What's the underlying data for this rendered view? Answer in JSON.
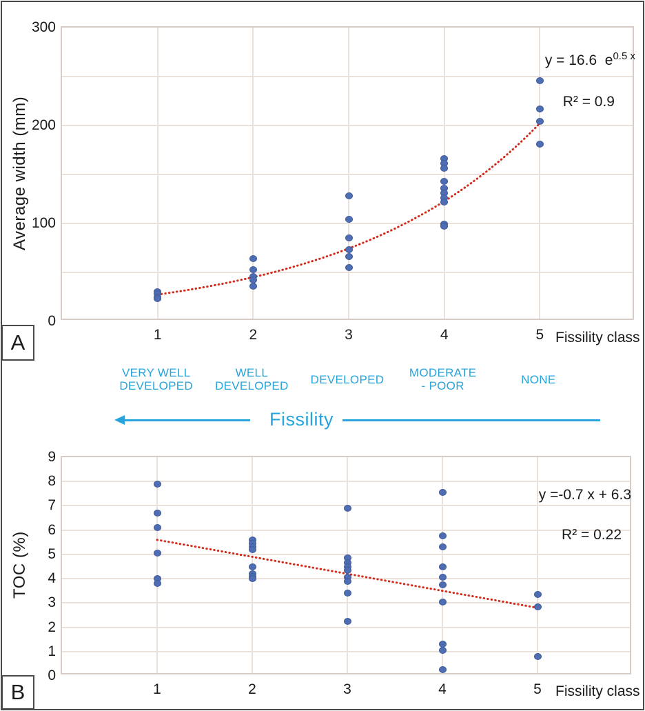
{
  "labels": {
    "panel_a": "A",
    "panel_b": "B"
  },
  "middle": {
    "accent_color": "#27a4dc",
    "axis_word": "Fissility",
    "categories": [
      {
        "class": 1,
        "lines": [
          "VERY WELL",
          "DEVELOPED"
        ]
      },
      {
        "class": 2,
        "lines": [
          "WELL",
          "DEVELOPED"
        ]
      },
      {
        "class": 3,
        "lines": [
          "DEVELOPED"
        ]
      },
      {
        "class": 4,
        "lines": [
          "MODERATE",
          "- POOR"
        ]
      },
      {
        "class": 5,
        "lines": [
          "NONE"
        ]
      }
    ]
  },
  "chart_data": [
    {
      "panel": "A",
      "type": "scatter",
      "ylabel": "Average width (mm)",
      "xlabel": "Fissility class",
      "xlim": [
        0,
        6
      ],
      "ylim": [
        0,
        300
      ],
      "xticks": [
        1,
        2,
        3,
        4,
        5
      ],
      "yticks": [
        0,
        100,
        200,
        300
      ],
      "ygrid_step": 50,
      "grid": true,
      "point_color": "#4e6db2",
      "trend_color": "#d42a1a",
      "series": [
        {
          "x": 1,
          "values": [
            30,
            28,
            25,
            23
          ]
        },
        {
          "x": 2,
          "values": [
            64,
            53,
            46,
            42,
            36
          ]
        },
        {
          "x": 3,
          "values": [
            128,
            104,
            85,
            73,
            66,
            55
          ]
        },
        {
          "x": 4,
          "values": [
            166,
            161,
            156,
            143,
            136,
            131,
            126,
            122,
            99,
            97
          ]
        },
        {
          "x": 5,
          "values": [
            246,
            217,
            204,
            181
          ]
        }
      ],
      "trendline": {
        "type": "exponential",
        "a": 16.6,
        "b": 0.5,
        "x_start": 1,
        "x_end": 5
      },
      "equation": {
        "base": "y = 16.6  e",
        "sup": "0.5 x",
        "r2": "R² = 0.9"
      }
    },
    {
      "panel": "B",
      "type": "scatter",
      "ylabel": "TOC (%)",
      "xlabel": "Fissility class",
      "xlim": [
        0,
        6
      ],
      "ylim": [
        0,
        9
      ],
      "xticks": [
        1,
        2,
        3,
        4,
        5
      ],
      "yticks": [
        0,
        1,
        2,
        3,
        4,
        5,
        6,
        7,
        8,
        9
      ],
      "ygrid_step": 1,
      "grid": true,
      "point_color": "#4e6db2",
      "trend_color": "#d42a1a",
      "series": [
        {
          "x": 1,
          "values": [
            7.9,
            6.7,
            6.1,
            5.05,
            4.0,
            3.8
          ]
        },
        {
          "x": 2,
          "values": [
            5.6,
            5.45,
            5.3,
            5.2,
            4.5,
            4.2,
            4.1,
            4.0
          ]
        },
        {
          "x": 3,
          "values": [
            6.9,
            4.85,
            4.65,
            4.5,
            4.35,
            4.05,
            3.9,
            3.4,
            2.25
          ]
        },
        {
          "x": 4,
          "values": [
            7.55,
            5.75,
            5.3,
            4.5,
            4.05,
            3.75,
            3.05,
            1.3,
            1.05,
            0.25
          ]
        },
        {
          "x": 5,
          "values": [
            3.35,
            2.85,
            0.8
          ]
        }
      ],
      "trendline": {
        "type": "linear",
        "m": -0.7,
        "b": 6.3,
        "x_start": 1,
        "x_end": 5
      },
      "equation": {
        "base": "y =-0.7 x + 6.3",
        "sup": "",
        "r2": "R² = 0.22"
      }
    }
  ]
}
